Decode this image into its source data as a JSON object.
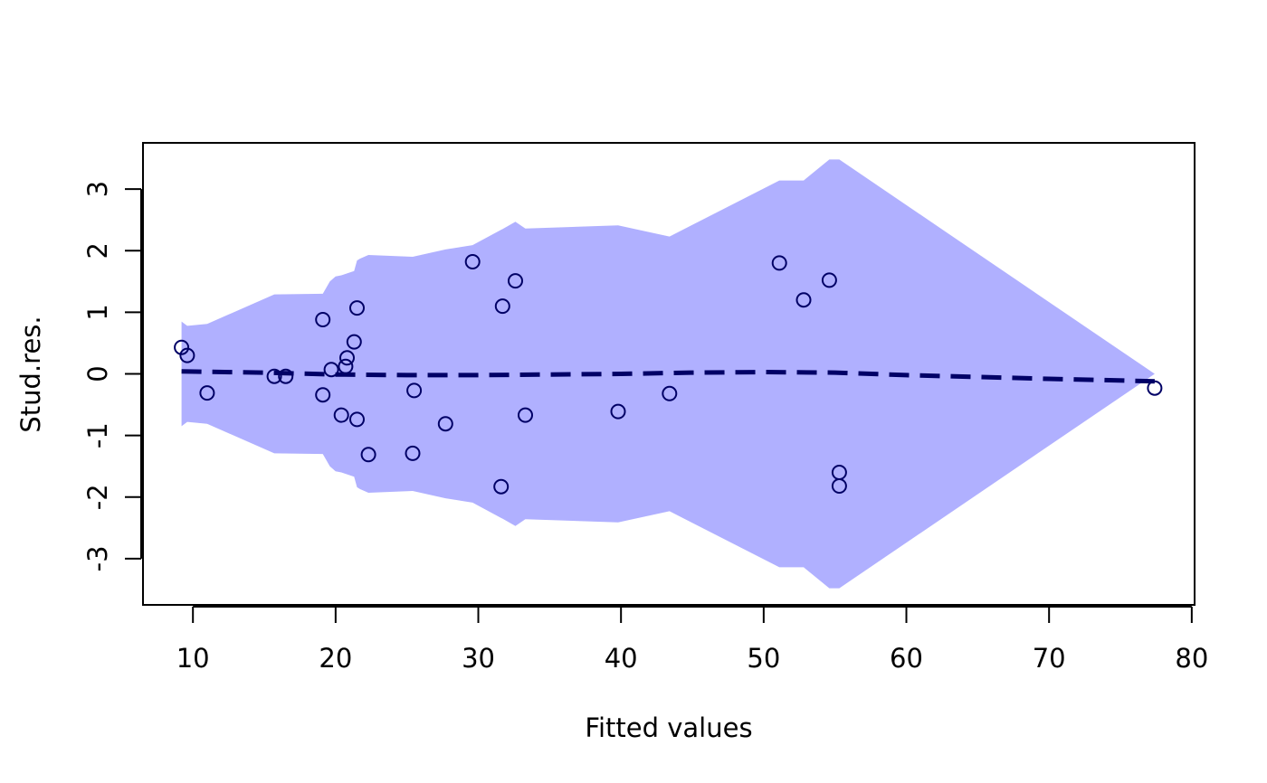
{
  "chart_data": {
    "type": "scatter",
    "title": "",
    "xlabel": "Fitted values",
    "ylabel": "Stud.res.",
    "xlim": [
      6.5,
      80.2
    ],
    "ylim": [
      -3.75,
      3.75
    ],
    "x_ticks": [
      10,
      20,
      30,
      40,
      50,
      60,
      70,
      80
    ],
    "x_tick_labels": [
      "10",
      "20",
      "30",
      "40",
      "50",
      "60",
      "70",
      "80"
    ],
    "y_ticks": [
      -3,
      -2,
      -1,
      0,
      1,
      2,
      3
    ],
    "y_tick_labels": [
      "-3",
      "-2",
      "-1",
      "0",
      "1",
      "2",
      "3"
    ],
    "grid": false,
    "colors": {
      "band": "#b0b0ff",
      "trend": "#000066",
      "points": "#000066",
      "axes": "#000000"
    },
    "band": {
      "x": [
        9.2,
        9.6,
        11.0,
        15.7,
        19.1,
        19.6,
        20.0,
        20.4,
        20.8,
        21.3,
        21.5,
        21.7,
        22.3,
        25.4,
        27.7,
        29.6,
        31.6,
        31.7,
        32.6,
        33.3,
        39.8,
        43.4,
        51.1,
        52.8,
        54.6,
        55.3,
        77.4
      ],
      "upper": [
        0.85,
        0.78,
        0.81,
        1.29,
        1.3,
        1.5,
        1.58,
        1.6,
        1.63,
        1.67,
        1.84,
        1.87,
        1.93,
        1.9,
        2.02,
        2.09,
        2.34,
        2.35,
        2.47,
        2.36,
        2.41,
        2.23,
        3.14,
        3.14,
        3.48,
        3.48,
        0.0
      ],
      "lower": [
        -0.85,
        -0.78,
        -0.81,
        -1.29,
        -1.3,
        -1.5,
        -1.58,
        -1.6,
        -1.63,
        -1.67,
        -1.84,
        -1.87,
        -1.93,
        -1.9,
        -2.02,
        -2.09,
        -2.34,
        -2.35,
        -2.47,
        -2.36,
        -2.41,
        -2.23,
        -3.14,
        -3.14,
        -3.48,
        -3.48,
        0.0
      ]
    },
    "trend": {
      "x": [
        9.2,
        15.0,
        20.0,
        25.0,
        30.0,
        35.0,
        40.0,
        45.0,
        50.0,
        55.0,
        60.0,
        65.0,
        70.0,
        77.4
      ],
      "y": [
        0.04,
        0.02,
        -0.01,
        -0.02,
        -0.02,
        -0.01,
        0.0,
        0.02,
        0.03,
        0.02,
        -0.02,
        -0.05,
        -0.08,
        -0.12
      ],
      "style": "dashed"
    },
    "points": {
      "x": [
        9.2,
        9.6,
        11.0,
        15.7,
        16.5,
        19.1,
        19.1,
        19.7,
        20.4,
        20.7,
        20.8,
        21.3,
        21.5,
        21.5,
        22.3,
        25.4,
        25.5,
        27.7,
        29.6,
        31.6,
        31.7,
        32.6,
        33.3,
        39.8,
        43.4,
        51.1,
        52.8,
        54.6,
        55.3,
        55.3,
        77.4
      ],
      "y": [
        0.43,
        0.3,
        -0.31,
        -0.04,
        -0.04,
        0.88,
        -0.34,
        0.07,
        -0.67,
        0.12,
        0.26,
        0.52,
        1.07,
        -0.74,
        -1.31,
        -1.29,
        -0.27,
        -0.81,
        1.82,
        -1.83,
        1.1,
        1.51,
        -0.67,
        -0.61,
        -0.32,
        1.8,
        1.2,
        1.52,
        -1.6,
        -1.82,
        -0.23
      ],
      "marker": "open-circle"
    }
  }
}
